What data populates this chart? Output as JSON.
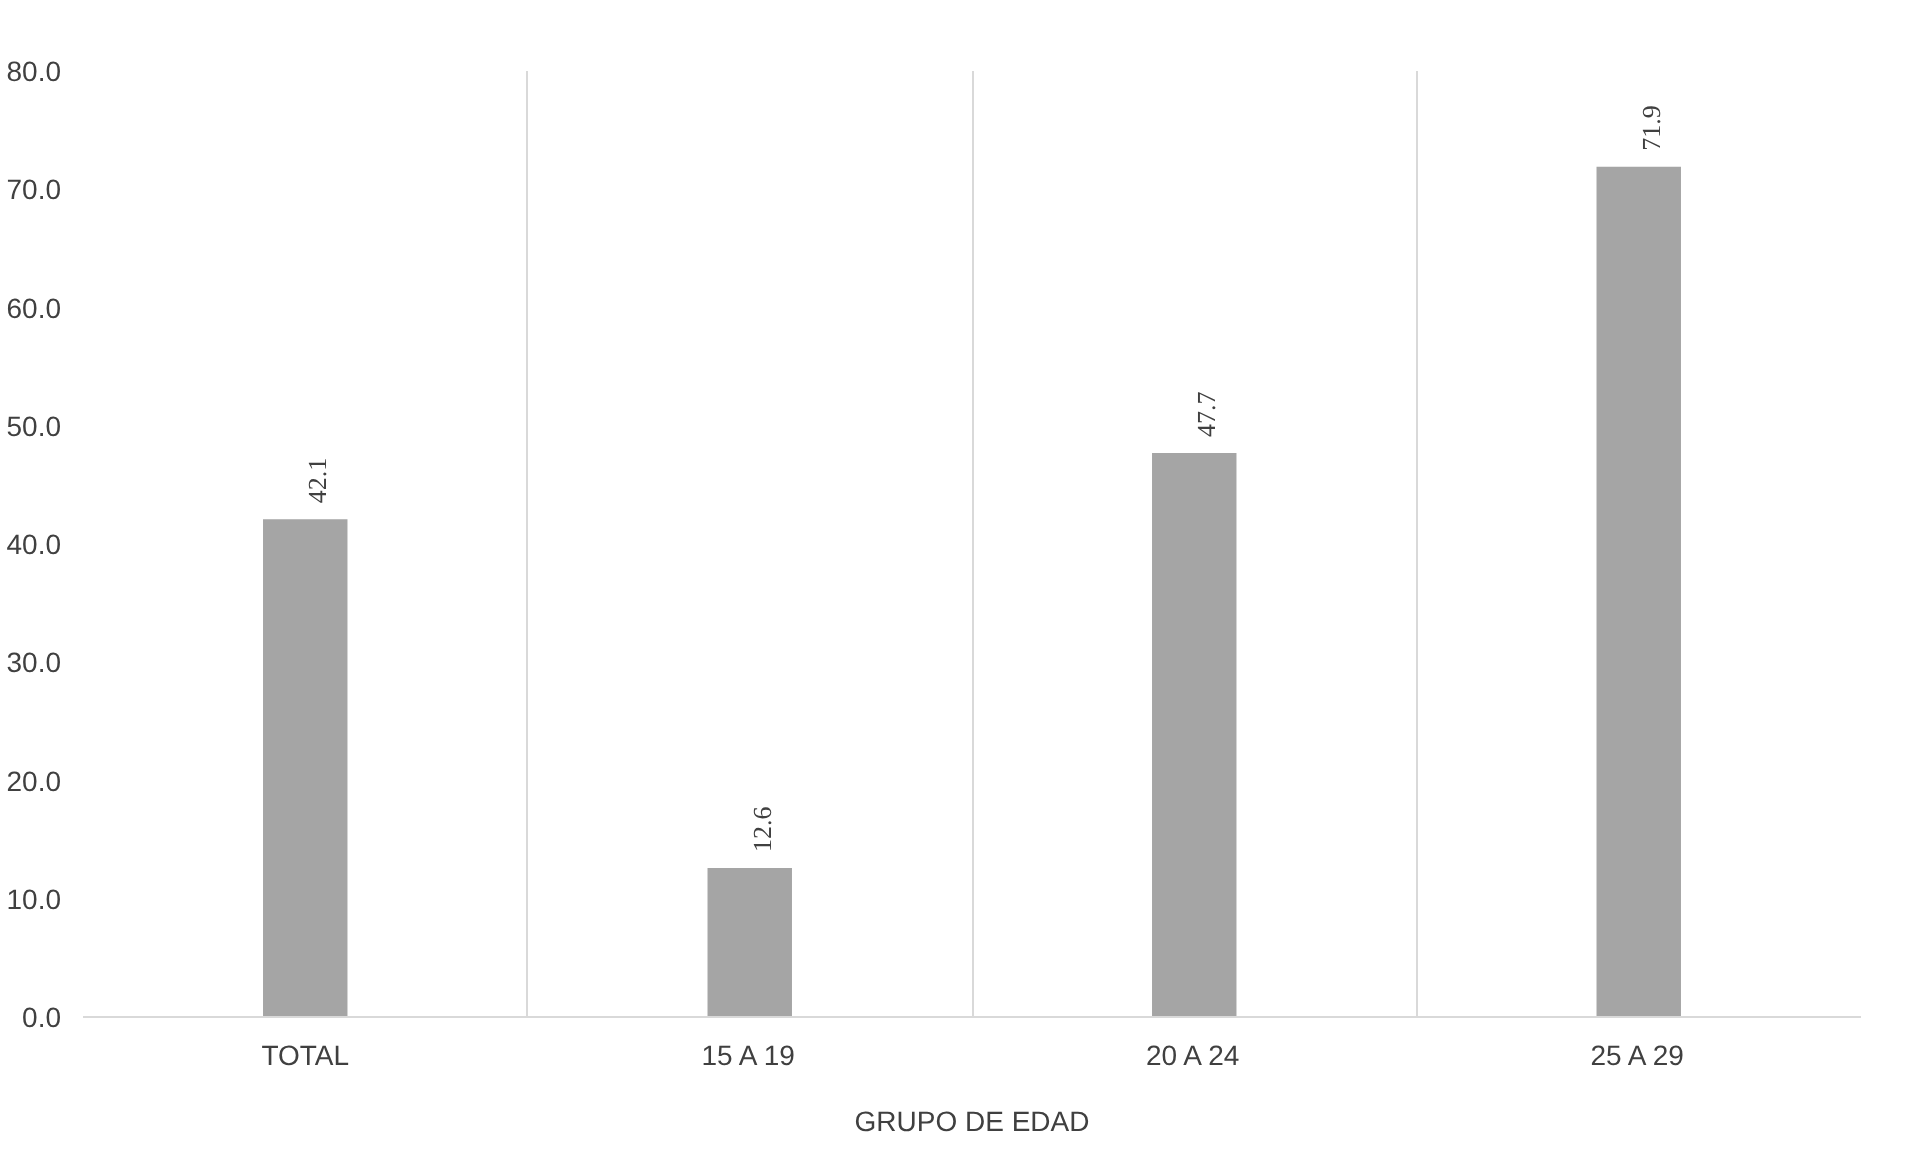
{
  "chart_data": {
    "type": "bar",
    "xlabel": "GRUPO DE EDAD",
    "categories": [
      "TOTAL",
      "15 A 19",
      "20 A 24",
      "25 A 29"
    ],
    "values": [
      42.1,
      12.6,
      47.7,
      71.9
    ],
    "color": "#a5a5a5",
    "data_labels": true,
    "grid": "x",
    "ylim": [
      0,
      80
    ],
    "yticks": [
      {
        "value": 0,
        "label": "0.0"
      },
      {
        "value": 10,
        "label": "10.0"
      },
      {
        "value": 20,
        "label": "20.0"
      },
      {
        "value": 30,
        "label": "30.0"
      },
      {
        "value": 40,
        "label": "40.0"
      },
      {
        "value": 50,
        "label": "50.0"
      },
      {
        "value": 60,
        "label": "60.0"
      },
      {
        "value": 70,
        "label": "70.0"
      },
      {
        "value": 80,
        "label": "80.0"
      }
    ]
  }
}
